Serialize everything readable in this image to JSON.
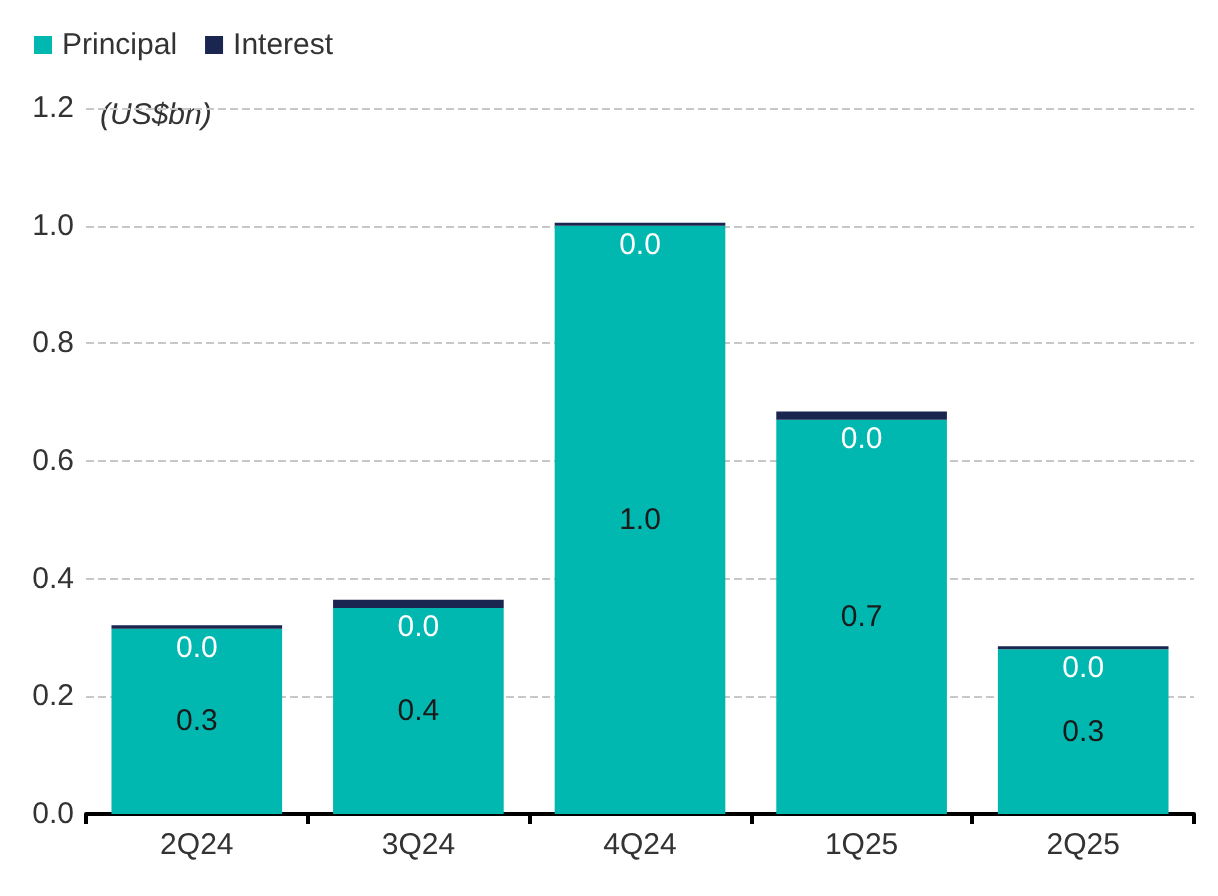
{
  "chart_data": {
    "type": "bar",
    "stacked": true,
    "ylabel": "(US$bn)",
    "categories": [
      "2Q24",
      "3Q24",
      "4Q24",
      "1Q25",
      "2Q25"
    ],
    "series": [
      {
        "name": "Principal",
        "color": "#00b8b0",
        "values": [
          0.315,
          0.35,
          1.0,
          0.67,
          0.28
        ],
        "value_labels": [
          "0.3",
          "0.4",
          "1.0",
          "0.7",
          "0.3"
        ]
      },
      {
        "name": "Interest",
        "color": "#1a2550",
        "values": [
          0.006,
          0.014,
          0.005,
          0.014,
          0.005
        ],
        "value_labels": [
          "0.0",
          "0.0",
          "0.0",
          "0.0",
          "0.0"
        ]
      }
    ],
    "ylim": [
      0,
      1.2
    ],
    "yticks": [
      {
        "value": 0,
        "label": "0.0"
      },
      0.2,
      0.4,
      0.6,
      0.8,
      {
        "value": 1,
        "label": "1.0"
      },
      1.2
    ],
    "grid": "y",
    "legend": "top left"
  }
}
